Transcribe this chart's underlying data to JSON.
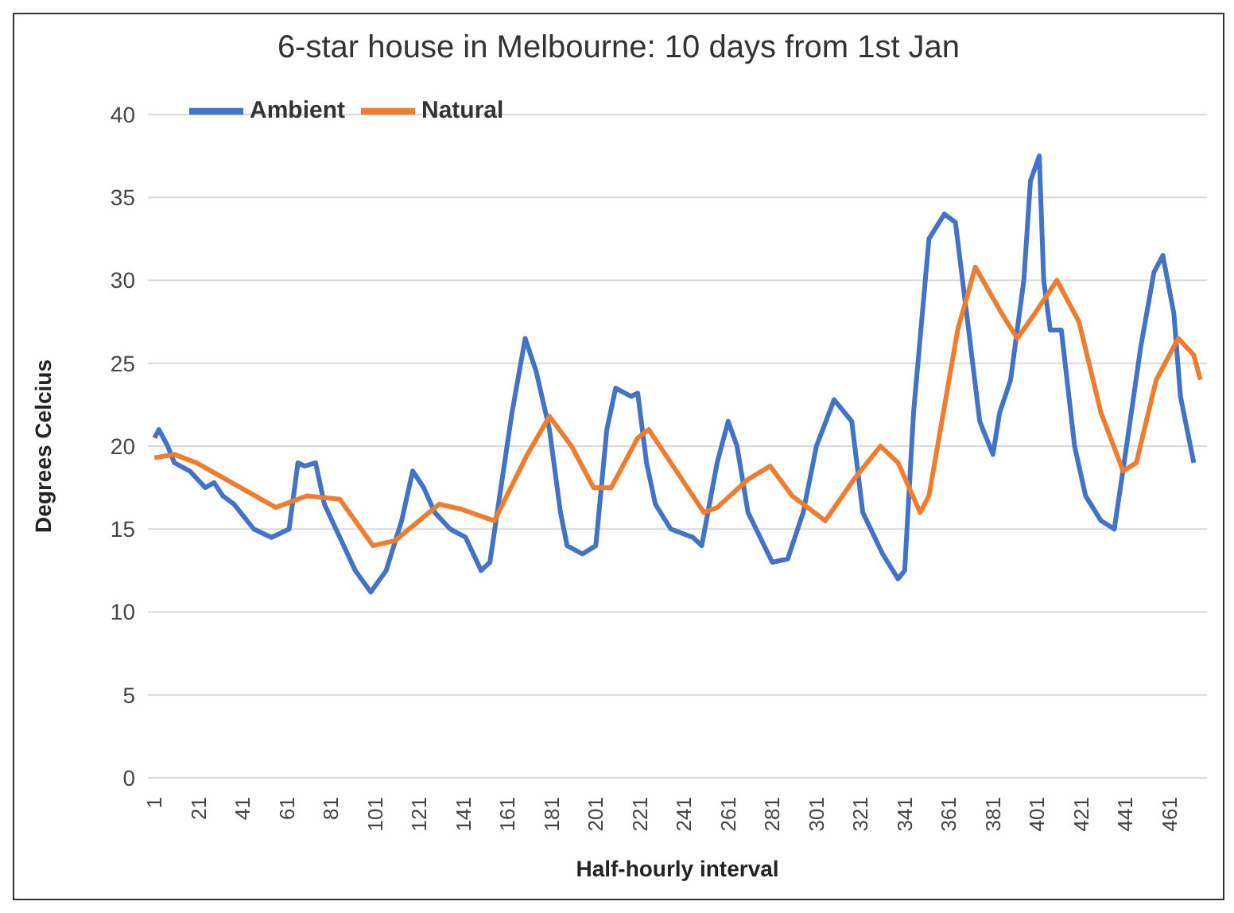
{
  "chart_data": {
    "type": "line",
    "title": "6-star house in Melbourne: 10 days from 1st Jan",
    "xlabel": "Half-hourly interval",
    "ylabel": "Degrees Celcius",
    "xlim": [
      -2,
      478
    ],
    "xticks": [
      1,
      21,
      41,
      61,
      81,
      101,
      121,
      141,
      161,
      181,
      201,
      221,
      241,
      261,
      281,
      301,
      321,
      341,
      361,
      381,
      401,
      421,
      441,
      461
    ],
    "ylim": [
      0,
      40
    ],
    "yticks": [
      0,
      5,
      10,
      15,
      20,
      25,
      30,
      35,
      40
    ],
    "grid": "y",
    "legend": "top left",
    "marker": "none",
    "line_style": "solid",
    "series": [
      {
        "name": "Ambient",
        "color": "#4472c4",
        "x": [
          1,
          3,
          7,
          10,
          17,
          24,
          28,
          32,
          37,
          46,
          54,
          62,
          66,
          69,
          74,
          78,
          85,
          92,
          99,
          106,
          113,
          118,
          123,
          128,
          135,
          142,
          149,
          153,
          158,
          163,
          169,
          174,
          180,
          185,
          188,
          195,
          201,
          206,
          210,
          217,
          220,
          224,
          228,
          235,
          245,
          249,
          256,
          261,
          265,
          270,
          281,
          288,
          295,
          301,
          309,
          317,
          322,
          331,
          338,
          341,
          345,
          349,
          352,
          359,
          364,
          370,
          375,
          381,
          384,
          389,
          395,
          398,
          402,
          404,
          407,
          412,
          418,
          423,
          430,
          436,
          441,
          448,
          454,
          458,
          463,
          466,
          472
        ],
        "values": [
          20.5,
          21,
          20,
          19,
          18.5,
          17.5,
          17.8,
          17,
          16.5,
          15,
          14.5,
          15,
          19,
          18.8,
          19,
          16.5,
          14.5,
          12.5,
          11.2,
          12.5,
          15.5,
          18.5,
          17.5,
          16,
          15,
          14.5,
          12.5,
          13,
          17.5,
          22,
          26.5,
          24.5,
          21,
          16,
          14,
          13.5,
          14,
          21,
          23.5,
          23,
          23.2,
          19,
          16.5,
          15,
          14.5,
          14,
          19,
          21.5,
          20,
          16,
          13,
          13.2,
          16,
          20,
          22.8,
          21.5,
          16,
          13.5,
          12,
          12.5,
          22,
          28,
          32.5,
          34,
          33.5,
          27,
          21.5,
          19.5,
          22,
          24,
          30,
          36,
          37.5,
          30,
          27,
          27,
          20,
          17,
          15.5,
          15,
          19.5,
          26,
          30.5,
          31.5,
          28,
          23,
          19
        ]
      },
      {
        "name": "Natural",
        "color": "#ed7d31",
        "x": [
          1,
          10,
          20,
          40,
          56,
          70,
          85,
          100,
          110,
          130,
          140,
          155,
          170,
          180,
          190,
          200,
          208,
          220,
          225,
          240,
          250,
          256,
          270,
          280,
          290,
          305,
          318,
          330,
          338,
          348,
          352,
          365,
          373,
          385,
          392,
          400,
          410,
          420,
          430,
          440,
          446,
          455,
          465,
          472,
          475
        ],
        "values": [
          19.3,
          19.5,
          19,
          17.5,
          16.3,
          17,
          16.8,
          14,
          14.3,
          16.5,
          16.2,
          15.5,
          19.5,
          21.8,
          20,
          17.5,
          17.5,
          20.5,
          21,
          18,
          16,
          16.3,
          18,
          18.8,
          17,
          15.5,
          18,
          20,
          19,
          16,
          17,
          27,
          30.8,
          28,
          26.5,
          28,
          30,
          27.5,
          22,
          18.5,
          19,
          24,
          26.5,
          25.5,
          24
        ]
      }
    ]
  }
}
